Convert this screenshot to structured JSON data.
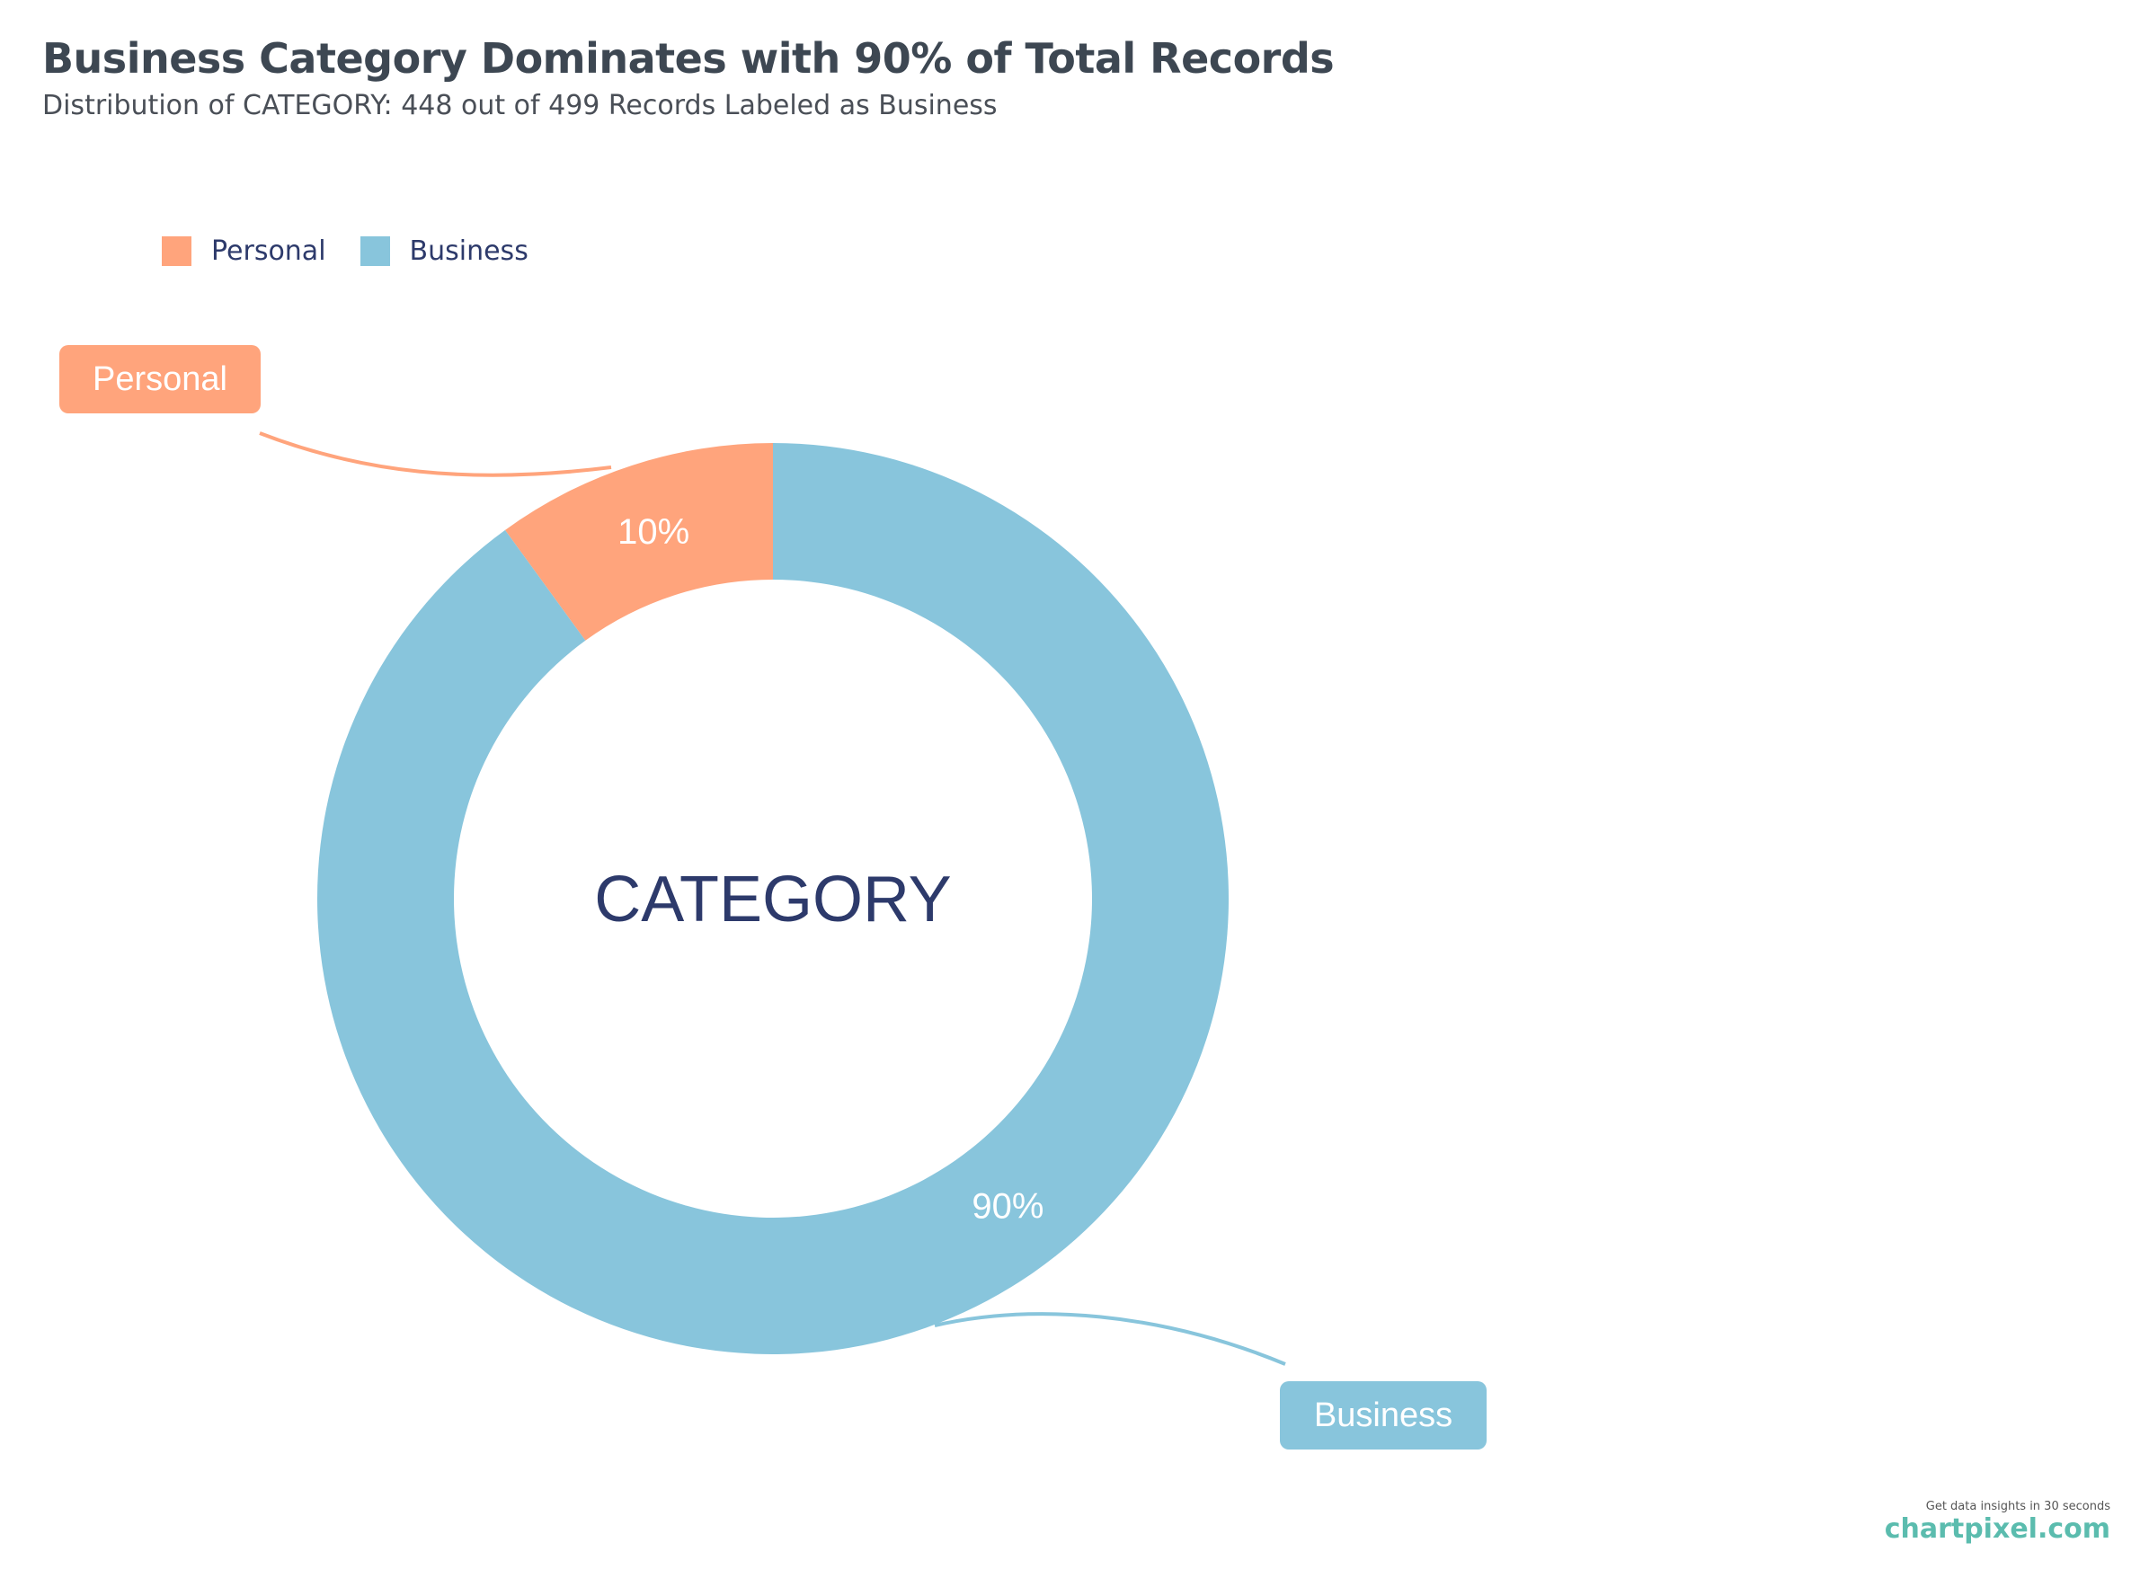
{
  "header": {
    "title": "Business Category Dominates with 90% of Total Records",
    "subtitle": "Distribution of CATEGORY: 448 out of 499 Records Labeled as Business"
  },
  "legend": {
    "items": [
      {
        "label": "Personal",
        "color": "#ffa47c"
      },
      {
        "label": "Business",
        "color": "#88c5dc"
      }
    ]
  },
  "chart_data": {
    "type": "pie",
    "style": "donut",
    "center_label": "CATEGORY",
    "categories": [
      "Personal",
      "Business"
    ],
    "values": [
      10,
      90
    ],
    "value_labels": [
      "10%",
      "90%"
    ],
    "colors": [
      "#ffa47c",
      "#88c5dc"
    ],
    "callouts": [
      "Personal",
      "Business"
    ],
    "legend_position": "top-left"
  },
  "branding": {
    "tagline": "Get data insights in 30 seconds",
    "name": "chartpixel.com"
  }
}
